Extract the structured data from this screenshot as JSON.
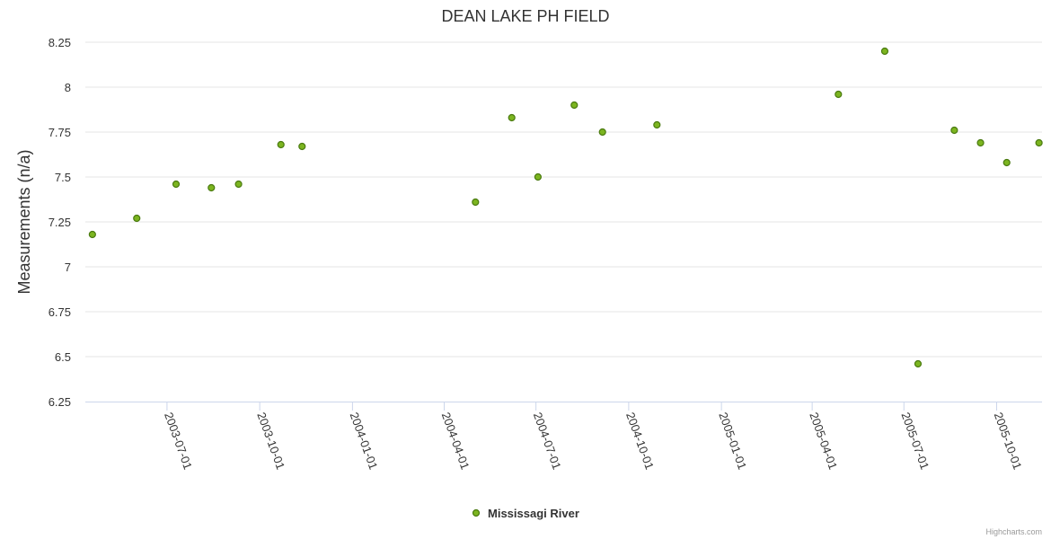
{
  "chart_data": {
    "type": "scatter",
    "title": "DEAN LAKE PH FIELD",
    "xlabel": "",
    "ylabel": "Measurements (n/a)",
    "x_type": "date",
    "xlim": [
      "2003-04-11",
      "2005-11-15"
    ],
    "ylim": [
      6.25,
      8.25
    ],
    "y_ticks": [
      6.25,
      6.5,
      6.75,
      7,
      7.25,
      7.5,
      7.75,
      8,
      8.25
    ],
    "y_tick_labels": [
      "6.25",
      "6.5",
      "6.75",
      "7",
      "7.25",
      "7.5",
      "7.75",
      "8",
      "8.25"
    ],
    "x_ticks": [
      "2003-07-01",
      "2003-10-01",
      "2004-01-01",
      "2004-04-01",
      "2004-07-01",
      "2004-10-01",
      "2005-01-01",
      "2005-04-01",
      "2005-07-01",
      "2005-10-01"
    ],
    "grid": "horizontal",
    "legend_position": "bottom-center",
    "series": [
      {
        "name": "Mississagi River",
        "color": "#7cb520",
        "stroke": "#4a7a10",
        "points": [
          {
            "x": "2003-04-18",
            "y": 7.18
          },
          {
            "x": "2003-06-01",
            "y": 7.27
          },
          {
            "x": "2003-07-10",
            "y": 7.46
          },
          {
            "x": "2003-08-14",
            "y": 7.44
          },
          {
            "x": "2003-09-10",
            "y": 7.46
          },
          {
            "x": "2003-10-22",
            "y": 7.68
          },
          {
            "x": "2003-11-12",
            "y": 7.67
          },
          {
            "x": "2004-05-02",
            "y": 7.36
          },
          {
            "x": "2004-06-07",
            "y": 7.83
          },
          {
            "x": "2004-07-03",
            "y": 7.5
          },
          {
            "x": "2004-08-08",
            "y": 7.9
          },
          {
            "x": "2004-09-05",
            "y": 7.75
          },
          {
            "x": "2004-10-29",
            "y": 7.79
          },
          {
            "x": "2005-04-27",
            "y": 7.96
          },
          {
            "x": "2005-06-12",
            "y": 8.2
          },
          {
            "x": "2005-07-15",
            "y": 6.46
          },
          {
            "x": "2005-08-20",
            "y": 7.76
          },
          {
            "x": "2005-09-15",
            "y": 7.69
          },
          {
            "x": "2005-10-11",
            "y": 7.58
          },
          {
            "x": "2005-11-12",
            "y": 7.69
          }
        ]
      }
    ]
  },
  "credits": "Highcharts.com"
}
